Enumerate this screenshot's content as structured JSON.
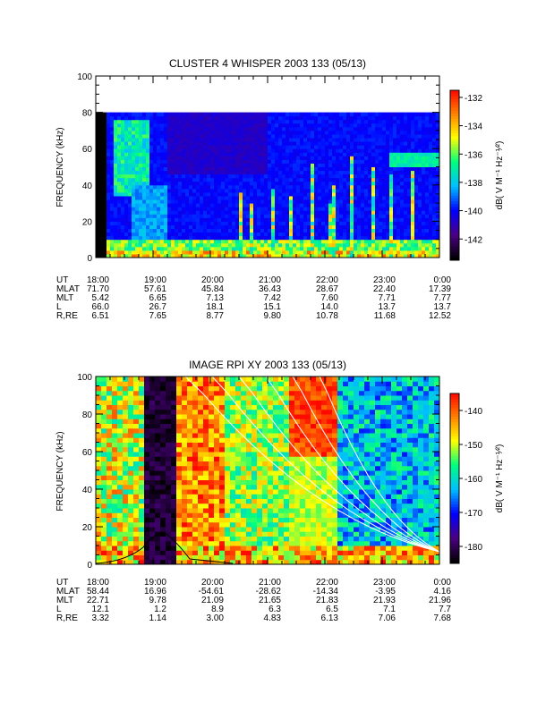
{
  "chart_data": [
    {
      "type": "heatmap",
      "title": "CLUSTER 4 WHISPER 2003 133 (05/13)",
      "ylabel": "FREQUENCY (kHz)",
      "ylim": [
        0,
        100
      ],
      "yticks": [
        "0",
        "20",
        "40",
        "60",
        "80",
        "100"
      ],
      "colorbar": {
        "label": "dB( V M⁻¹ Hz⁻¹⁄²)",
        "range": [
          -143.5,
          -131.5
        ],
        "ticks": [
          "-132",
          "-134",
          "-136",
          "-138",
          "-140",
          "-142"
        ],
        "colors": [
          "#000000",
          "#4b0082",
          "#0000ff",
          "#00bfff",
          "#00ff7f",
          "#ffff00",
          "#ff8000",
          "#ff0000"
        ]
      },
      "data_max_frequency_khz": 80,
      "ephemeris": {
        "labels": [
          "UT",
          "MLAT",
          "MLT",
          "L",
          "R,RE"
        ],
        "columns": [
          [
            "18:00",
            "71.70",
            "5.42",
            "66.0",
            "6.51"
          ],
          [
            "19:00",
            "57.61",
            "6.65",
            "26.7",
            "7.65"
          ],
          [
            "20:00",
            "45.84",
            "7.13",
            "18.1",
            "8.77"
          ],
          [
            "21:00",
            "36.43",
            "7.42",
            "15.1",
            "9.80"
          ],
          [
            "22:00",
            "28.67",
            "7.60",
            "14.0",
            "10.78"
          ],
          [
            "23:00",
            "22.40",
            "7.71",
            "13.7",
            "11.68"
          ],
          [
            "0:00",
            "17.39",
            "7.77",
            "13.7",
            "12.52"
          ]
        ]
      }
    },
    {
      "type": "heatmap",
      "title": "IMAGE RPI XY 2003 133 (05/13)",
      "ylabel": "FREQUENCY (kHz)",
      "ylim": [
        0,
        100
      ],
      "yticks": [
        "0",
        "20",
        "40",
        "60",
        "80",
        "100"
      ],
      "colorbar": {
        "label": "dB( V M⁻¹ Hz⁻¹⁄²)",
        "range": [
          -185,
          -135
        ],
        "ticks": [
          "-140",
          "-150",
          "-160",
          "-170",
          "-180"
        ],
        "colors": [
          "#000000",
          "#4b0082",
          "#0000ff",
          "#00bfff",
          "#00ff7f",
          "#ffff00",
          "#ff8000",
          "#ff0000"
        ]
      },
      "ephemeris": {
        "labels": [
          "UT",
          "MLAT",
          "MLT",
          "L",
          "R,RE"
        ],
        "columns": [
          [
            "18:00",
            "58.44",
            "22.71",
            "12.1",
            "3.32"
          ],
          [
            "19:00",
            "16.96",
            "9.78",
            "1.2",
            "1.14"
          ],
          [
            "20:00",
            "-54.61",
            "21.09",
            "8.9",
            "3.00"
          ],
          [
            "21:00",
            "-28.62",
            "21.65",
            "6.3",
            "4.83"
          ],
          [
            "22:00",
            "-14.34",
            "21.83",
            "6.5",
            "6.13"
          ],
          [
            "23:00",
            "-3.95",
            "21.93",
            "7.1",
            "7.06"
          ],
          [
            "0:00",
            "4.16",
            "21.96",
            "7.7",
            "7.68"
          ]
        ]
      }
    }
  ]
}
